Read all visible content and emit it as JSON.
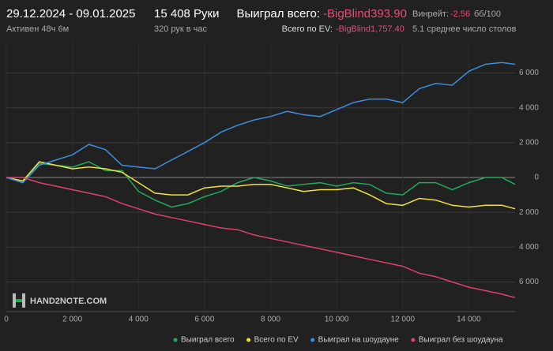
{
  "header": {
    "dates": "29.12.2024 - 09.01.2025",
    "active": "Активен 48ч 6м",
    "hands": "15 408 Руки",
    "rate": "320 рук в час",
    "won_label": "Выиграл всего:",
    "won_value": "-BigBlind393.90",
    "ev_label": "Всего по EV:",
    "ev_value": "-BigBlind1,757.40",
    "winrate_label": "Винрейт:",
    "winrate_value": "-2.56",
    "winrate_unit": "бб/100",
    "tables": "5.1 среднее число столов",
    "logo": "HAND2NOTE.COM"
  },
  "chart_data": {
    "type": "line",
    "x": [
      0,
      500,
      1000,
      1500,
      2000,
      2500,
      3000,
      3500,
      4000,
      4500,
      5000,
      5500,
      6000,
      6500,
      7000,
      7500,
      8000,
      8500,
      9000,
      9500,
      10000,
      10500,
      11000,
      11500,
      12000,
      12500,
      13000,
      13500,
      14000,
      14500,
      15000,
      15400
    ],
    "series": [
      {
        "name": "Выиграл всего",
        "color": "#1faa5a",
        "values": [
          0,
          -300,
          800,
          700,
          600,
          900,
          400,
          400,
          -800,
          -1300,
          -1700,
          -1500,
          -1100,
          -800,
          -300,
          0,
          -200,
          -500,
          -400,
          -300,
          -500,
          -300,
          -400,
          -900,
          -1000,
          -300,
          -300,
          -700,
          -300,
          0,
          0,
          -400
        ]
      },
      {
        "name": "Всего по EV",
        "color": "#f0e040",
        "values": [
          0,
          -200,
          900,
          700,
          500,
          600,
          500,
          300,
          -300,
          -900,
          -1000,
          -1000,
          -600,
          -500,
          -500,
          -400,
          -400,
          -600,
          -800,
          -700,
          -700,
          -600,
          -1000,
          -1500,
          -1600,
          -1200,
          -1300,
          -1600,
          -1700,
          -1600,
          -1600,
          -1800
        ]
      },
      {
        "name": "Выиграл на шоудауне",
        "color": "#3d8ee0",
        "values": [
          0,
          -300,
          700,
          1000,
          1300,
          1900,
          1600,
          700,
          600,
          500,
          1000,
          1500,
          2000,
          2600,
          3000,
          3300,
          3500,
          3800,
          3600,
          3500,
          3900,
          4300,
          4500,
          4500,
          4300,
          5100,
          5400,
          5300,
          6100,
          6500,
          6600,
          6500
        ]
      },
      {
        "name": "Выиграл без шоудауна",
        "color": "#e0406e",
        "values": [
          0,
          0,
          -300,
          -500,
          -700,
          -900,
          -1100,
          -1500,
          -1800,
          -2100,
          -2300,
          -2500,
          -2700,
          -2900,
          -3000,
          -3300,
          -3500,
          -3700,
          -3900,
          -4100,
          -4300,
          -4500,
          -4700,
          -4900,
          -5100,
          -5500,
          -5700,
          -6000,
          -6300,
          -6500,
          -6700,
          -6900
        ]
      }
    ],
    "xlim": [
      0,
      15400
    ],
    "ylim": [
      -7700,
      7700
    ],
    "xticks": [
      0,
      {
        "value": 2000,
        "label": "2 000"
      },
      {
        "value": 4000,
        "label": "4 000"
      },
      {
        "value": 6000,
        "label": "6 000"
      },
      {
        "value": 8000,
        "label": "8 000"
      },
      {
        "value": 10000,
        "label": "10 000"
      },
      {
        "value": 12000,
        "label": "12 000"
      },
      {
        "value": 14000,
        "label": "14 000"
      }
    ],
    "yticks": [
      {
        "value": 6000,
        "label": "6 000"
      },
      {
        "value": 4000,
        "label": "4 000"
      },
      {
        "value": 2000,
        "label": "2 000"
      },
      0,
      {
        "value": -2000,
        "label": "2 000"
      },
      {
        "value": -4000,
        "label": "4 000"
      },
      {
        "value": -6000,
        "label": "6 000"
      }
    ],
    "grid": true,
    "legend": "bottom"
  }
}
